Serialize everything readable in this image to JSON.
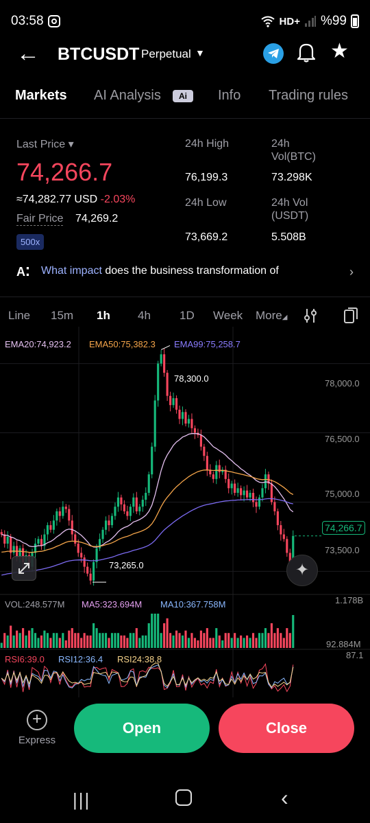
{
  "status_bar": {
    "time": "03:58",
    "battery_text": "%99",
    "network": "HD+"
  },
  "header": {
    "pair": "BTCUSDT",
    "type": "Perpetual"
  },
  "tabs": [
    {
      "label": "Markets",
      "active": true
    },
    {
      "label": "AI Analysis",
      "active": false,
      "badge": "Ai"
    },
    {
      "label": "Info",
      "active": false
    },
    {
      "label": "Trading rules",
      "active": false
    }
  ],
  "price": {
    "last_price_label": "Last Price",
    "last_price": "74,266.7",
    "approx": "≈74,282.77 USD",
    "change": "-2.03%",
    "fair_price_label": "Fair Price",
    "fair_price": "74,269.2",
    "leverage": "500x"
  },
  "stats": {
    "high_label": "24h High",
    "high": "76,199.3",
    "vol_btc_label_1": "24h",
    "vol_btc_label_2": "Vol(BTC)",
    "vol_btc": "73.298K",
    "low_label": "24h Low",
    "low": "73,669.2",
    "vol_usdt_label_1": "24h Vol",
    "vol_usdt_label_2": "(USDT)",
    "vol_usdt": "5.508B"
  },
  "ai_prompt": {
    "link": "What impact",
    "text": " does the business transformation of"
  },
  "intervals": [
    {
      "label": "Line",
      "active": false
    },
    {
      "label": "15m",
      "active": false
    },
    {
      "label": "1h",
      "active": true
    },
    {
      "label": "4h",
      "active": false
    },
    {
      "label": "1D",
      "active": false
    },
    {
      "label": "Week",
      "active": false
    },
    {
      "label": "More",
      "active": false
    }
  ],
  "indicators": {
    "ema20": "EMA20:74,923.2",
    "ema50": "EMA50:75,382.3",
    "ema99": "EMA99:75,258.7",
    "vol": "VOL:248.577M",
    "ma5": "MA5:323.694M",
    "ma10": "MA10:367.758M",
    "rsi6": "RSI6:39.0",
    "rsi12": "RSI12:36.4",
    "rsi24": "RSI24:38.8"
  },
  "chart_labels": {
    "high_marker": "78,300.0",
    "low_marker": "73,265.0",
    "current_price": "74,266.7",
    "y_axis": [
      "78,000.0",
      "76,500.0",
      "75,000.0",
      "73,500.0"
    ],
    "vol_top": "1.178B",
    "vol_bottom": "92.884M",
    "rsi_top": "87.1"
  },
  "colors": {
    "up": "#16b97b",
    "down": "#f6465d",
    "ema20": "#e4c0f0",
    "ema50": "#f5a54a",
    "ema99": "#7c6bf2"
  },
  "bottom_actions": {
    "express": "Express",
    "open": "Open",
    "close": "Close"
  },
  "chart_data": {
    "type": "candlestick",
    "interval": "1h",
    "high": 78300.0,
    "low": 73265.0,
    "last": 74266.7,
    "ylim": [
      73000,
      78500
    ],
    "y_ticks": [
      73500,
      75000,
      76500,
      78000
    ],
    "close_series": [
      74300,
      74100,
      74250,
      73900,
      74050,
      73800,
      74000,
      73700,
      73850,
      73600,
      73900,
      74100,
      74200,
      74050,
      74300,
      74500,
      74400,
      74600,
      74800,
      74700,
      74900,
      74850,
      74600,
      74300,
      74100,
      73900,
      73800,
      73600,
      73450,
      73300,
      73700,
      74000,
      74200,
      74400,
      74600,
      74500,
      74700,
      74900,
      75100,
      74950,
      74800,
      74700,
      74900,
      75100,
      74800,
      74900,
      75050,
      75200,
      75600,
      76200,
      77200,
      78000,
      78200,
      77800,
      77300,
      77100,
      77250,
      77000,
      76800,
      76950,
      76700,
      76800,
      76600,
      76500,
      76450,
      76200,
      76000,
      75700,
      75600,
      75500,
      75800,
      75650,
      75700,
      75500,
      75300,
      75400,
      75200,
      75300,
      75150,
      75250,
      75100,
      75200,
      75000,
      74900,
      75100,
      75300,
      75600,
      75400,
      75000,
      74800,
      74500,
      74300,
      74200,
      73900,
      73700,
      74266.7
    ]
  }
}
